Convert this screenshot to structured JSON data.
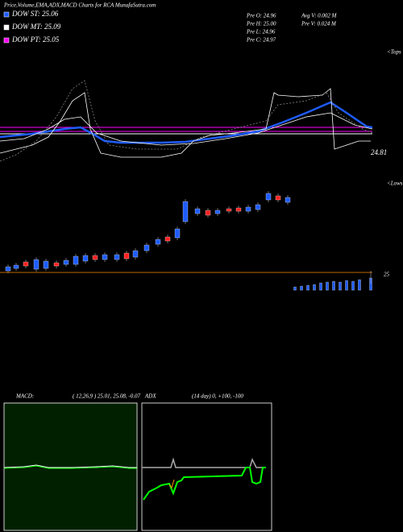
{
  "header": {
    "title": "Price,Volume,EMA,ADX,MACD Charts for RCA MunafaSutra.com"
  },
  "legend": [
    {
      "label": "DOW ST: 25.06"
    },
    {
      "label": "DOW MT: 25.09"
    },
    {
      "label": "DOW PT: 25.05"
    }
  ],
  "quote": {
    "open": "Pre  O: 24.96",
    "high": "Pre  H: 25.00",
    "low": "Pre  L: 24.96",
    "close": "Pre  C: 24.97",
    "avg_volume": "Avg V: 0.002  M",
    "volume": "Pre  V: 0.024  M"
  },
  "labels": {
    "tops": "<Tops",
    "price": "24.81",
    "lows": "<Lows",
    "volume": "25"
  },
  "macd": {
    "title": "MACD:",
    "params": "( 12,26,9 ) 25.01, 25.08, -0.07"
  },
  "adx": {
    "title": "ADX",
    "params": "(14  day) 0,  +100,  -100"
  }
}
